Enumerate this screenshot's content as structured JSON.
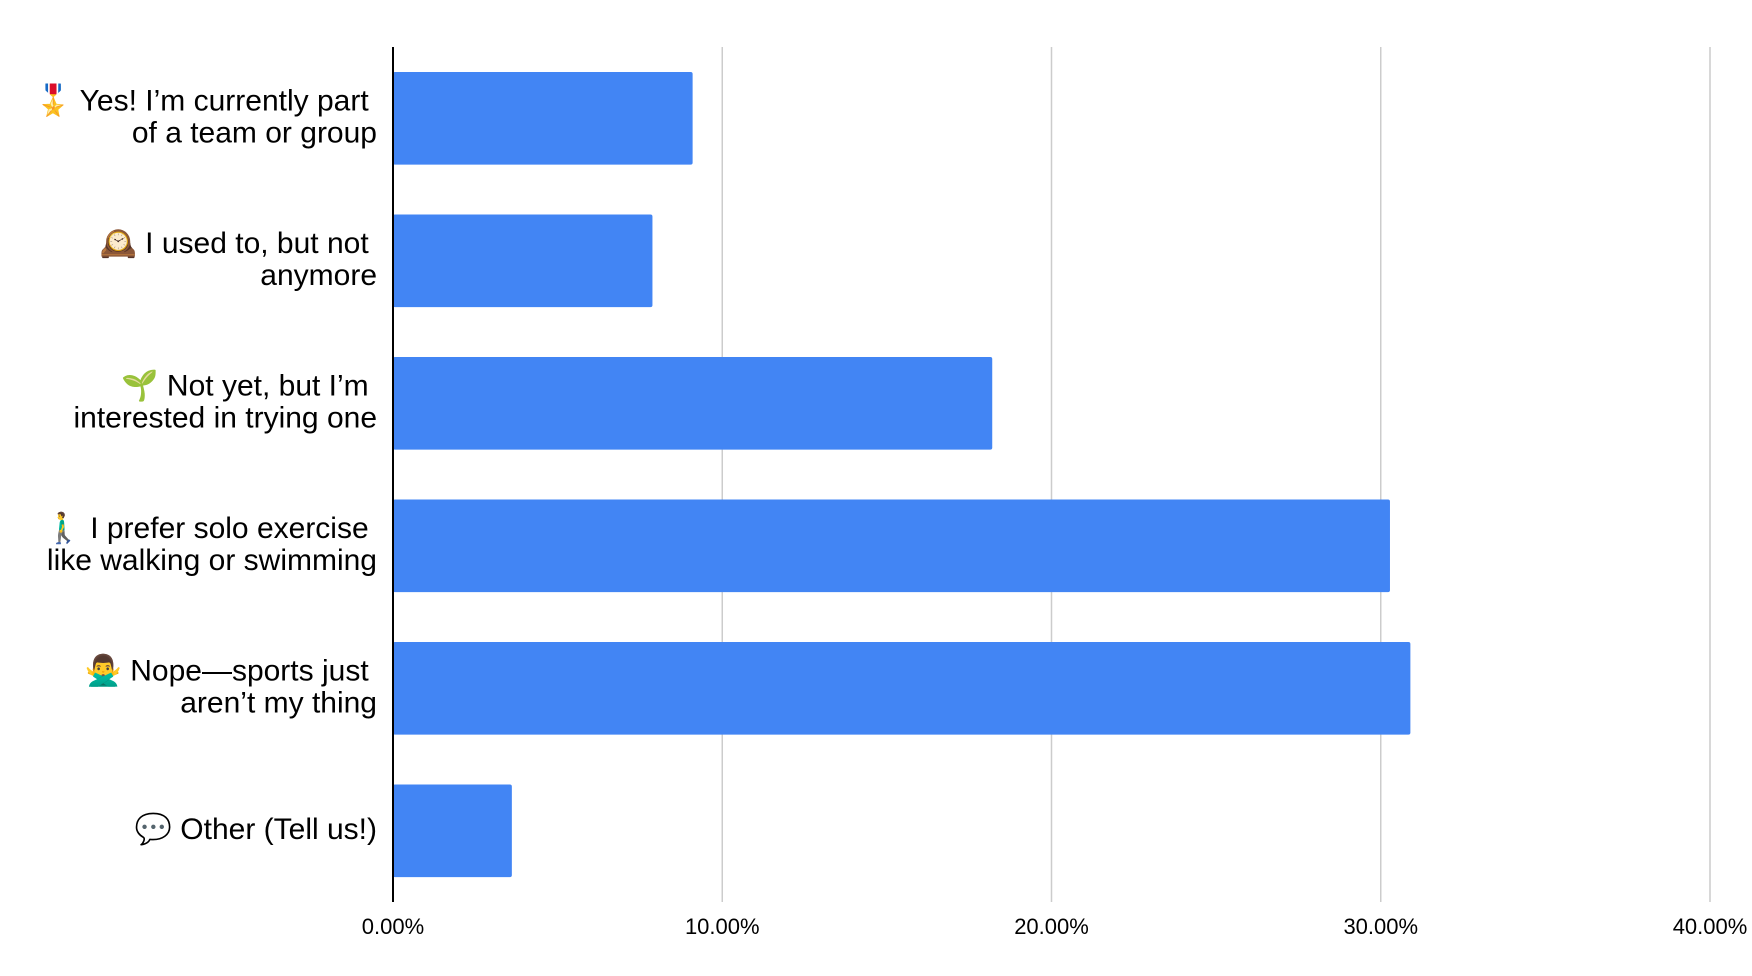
{
  "chart_data": {
    "type": "bar",
    "orientation": "horizontal",
    "categories": [
      "🎖️ Yes! I’m currently part of a team or group",
      "🕰️ I used to, but not anymore",
      "🌱 Not yet, but I’m interested in trying one",
      "🚶‍♂️ I prefer solo exercise like walking or swimming",
      "🙅‍♂️ Nope—sports just aren’t my thing",
      "💬 Other (Tell us!)"
    ],
    "values": [
      9.1,
      7.88,
      18.2,
      30.28,
      30.9,
      3.61
    ],
    "color": "#4285f4",
    "xlim": [
      0,
      40
    ],
    "xticks": [
      {
        "value": 0,
        "label": "0.00%"
      },
      {
        "value": 10,
        "label": "10.00%"
      },
      {
        "value": 20,
        "label": "20.00%"
      },
      {
        "value": 30,
        "label": "30.00%"
      },
      {
        "value": 40,
        "label": "40.00%"
      }
    ],
    "grid": true
  }
}
